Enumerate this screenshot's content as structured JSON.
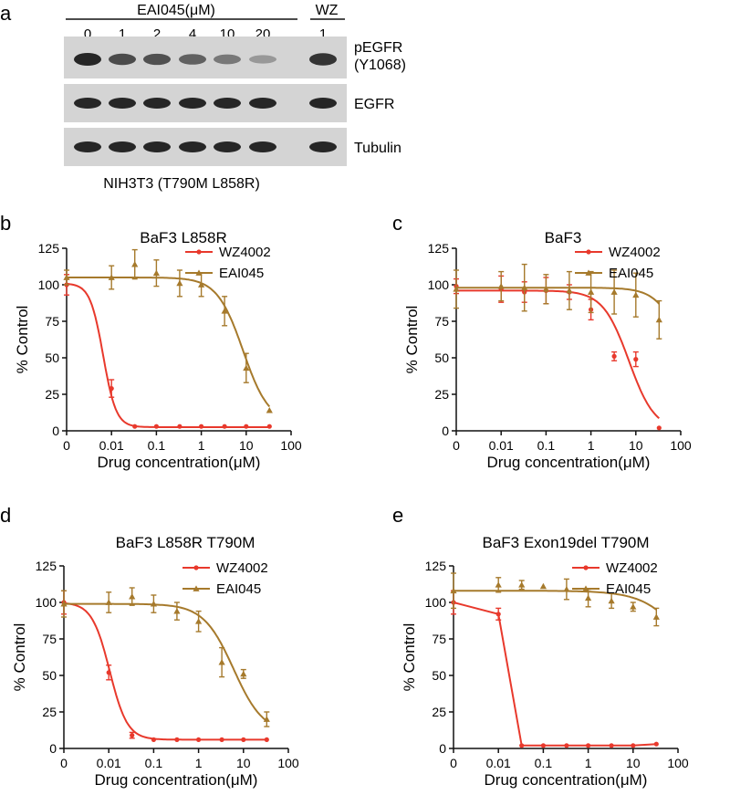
{
  "colors": {
    "wz4002": "#e8392c",
    "eai045": "#a67a2c",
    "axis": "#111111",
    "blot_bg": "#d4d4d4",
    "band": "#262626"
  },
  "blot": {
    "panel_label": "a",
    "eai_header": "EAI045(μM)",
    "wz_header": "WZ",
    "lanes": [
      "0",
      "1",
      "2",
      "4",
      "10",
      "20",
      "1"
    ],
    "rows": [
      {
        "label": "pEGFR",
        "label2": "(Y1068)",
        "intensity": [
          1.0,
          0.75,
          0.72,
          0.6,
          0.45,
          0.22,
          0.9
        ]
      },
      {
        "label": "EGFR",
        "label2": "",
        "intensity": [
          1,
          1,
          1,
          1,
          1,
          1,
          1
        ]
      },
      {
        "label": "Tubulin",
        "label2": "",
        "intensity": [
          1,
          1,
          1,
          1,
          1,
          1,
          1
        ]
      }
    ],
    "caption": "NIH3T3 (T790M L858R)"
  },
  "chart_data": [
    {
      "panel": "b",
      "type": "line",
      "title": "BaF3 L858R",
      "xlabel": "Drug concentration(μM)",
      "ylabel": "% Control",
      "xscale": "log",
      "x_ticks": [
        "0",
        "0.01",
        "0.1",
        "1",
        "10",
        "100"
      ],
      "y_ticks": [
        0,
        25,
        50,
        75,
        100,
        125
      ],
      "ylim": [
        0,
        125
      ],
      "legend": "top-right",
      "series": [
        {
          "name": "WZ4002",
          "marker": "circle",
          "fit": "curve",
          "points": [
            [
              0.001,
              100,
              7
            ],
            [
              0.01,
              29,
              6
            ],
            [
              0.033,
              3,
              1
            ],
            [
              0.1,
              3,
              1
            ],
            [
              0.33,
              3,
              1
            ],
            [
              1,
              3,
              1
            ],
            [
              3.3,
              3,
              1
            ],
            [
              10,
              3,
              1
            ],
            [
              33,
              3,
              1
            ]
          ],
          "curve": {
            "top": 101,
            "bottom": 2.5,
            "ic50": 0.0065,
            "hill": 3
          }
        },
        {
          "name": "EAI045",
          "marker": "triangle",
          "fit": "curve",
          "points": [
            [
              0.001,
              105,
              5
            ],
            [
              0.01,
              105,
              8
            ],
            [
              0.033,
              114,
              10
            ],
            [
              0.1,
              108,
              9
            ],
            [
              0.33,
              101,
              9
            ],
            [
              1,
              100,
              8
            ],
            [
              3.3,
              82,
              10
            ],
            [
              10,
              43,
              10
            ],
            [
              33,
              14,
              1
            ]
          ],
          "curve": {
            "top": 105,
            "bottom": 5,
            "ic50": 8.5,
            "hill": 1.5
          }
        }
      ]
    },
    {
      "panel": "c",
      "type": "line",
      "title": "BaF3",
      "xlabel": "Drug concentration(μM)",
      "ylabel": "% Control",
      "xscale": "log",
      "x_ticks": [
        "0",
        "0.01",
        "0.1",
        "1",
        "10",
        "100"
      ],
      "y_ticks": [
        0,
        25,
        50,
        75,
        100,
        125
      ],
      "ylim": [
        0,
        125
      ],
      "legend": "top-right",
      "series": [
        {
          "name": "WZ4002",
          "marker": "circle",
          "fit": "curve",
          "points": [
            [
              0.001,
              99,
              5
            ],
            [
              0.01,
              97,
              9
            ],
            [
              0.033,
              95,
              7
            ],
            [
              0.1,
              96,
              9
            ],
            [
              0.33,
              95,
              5
            ],
            [
              1,
              83,
              7
            ],
            [
              3.3,
              51,
              3
            ],
            [
              10,
              49,
              5
            ],
            [
              33,
              2,
              1
            ]
          ],
          "curve": {
            "top": 96,
            "bottom": 0,
            "ic50": 7,
            "hill": 1.5
          }
        },
        {
          "name": "EAI045",
          "marker": "triangle",
          "fit": "curve",
          "points": [
            [
              0.001,
              97,
              13
            ],
            [
              0.01,
              99,
              10
            ],
            [
              0.033,
              98,
              16
            ],
            [
              0.1,
              97,
              10
            ],
            [
              0.33,
              96,
              13
            ],
            [
              1,
              95,
              14
            ],
            [
              3.3,
              95,
              15
            ],
            [
              10,
              93,
              15
            ],
            [
              33,
              76,
              13
            ]
          ],
          "curve": {
            "top": 98,
            "bottom": 0,
            "ic50": 130,
            "hill": 1.5
          }
        }
      ]
    },
    {
      "panel": "d",
      "type": "line",
      "title": "BaF3 L858R T790M",
      "xlabel": "Drug concentration(μM)",
      "ylabel": "% Control",
      "xscale": "log",
      "x_ticks": [
        "0",
        "0.01",
        "0.1",
        "1",
        "10",
        "100"
      ],
      "y_ticks": [
        0,
        25,
        50,
        75,
        100,
        125
      ],
      "ylim": [
        0,
        125
      ],
      "legend": "top-right",
      "series": [
        {
          "name": "WZ4002",
          "marker": "circle",
          "fit": "curve",
          "points": [
            [
              0.001,
              100,
              8
            ],
            [
              0.01,
              52,
              5
            ],
            [
              0.033,
              9,
              2
            ],
            [
              0.1,
              6,
              1
            ],
            [
              0.33,
              6,
              1
            ],
            [
              1,
              6,
              1
            ],
            [
              3.3,
              6,
              1
            ],
            [
              10,
              6,
              1
            ],
            [
              33,
              6,
              1
            ]
          ],
          "curve": {
            "top": 100,
            "bottom": 6,
            "ic50": 0.0105,
            "hill": 2.2
          }
        },
        {
          "name": "EAI045",
          "marker": "triangle",
          "fit": "curve",
          "points": [
            [
              0.001,
              99,
              9
            ],
            [
              0.01,
              100,
              7
            ],
            [
              0.033,
              104,
              6
            ],
            [
              0.1,
              99,
              6
            ],
            [
              0.33,
              94,
              6
            ],
            [
              1,
              87,
              7
            ],
            [
              3.3,
              59,
              10
            ],
            [
              10,
              51,
              3
            ],
            [
              33,
              20,
              5
            ]
          ],
          "curve": {
            "top": 99,
            "bottom": 10,
            "ic50": 6,
            "hill": 1.3
          }
        }
      ]
    },
    {
      "panel": "e",
      "type": "line",
      "title": "BaF3 Exon19del T790M",
      "xlabel": "Drug concentration(μM)",
      "ylabel": "% Control",
      "xscale": "log",
      "x_ticks": [
        "0",
        "0.01",
        "0.1",
        "1",
        "10",
        "100"
      ],
      "y_ticks": [
        0,
        25,
        50,
        75,
        100,
        125
      ],
      "ylim": [
        0,
        125
      ],
      "legend": "top-right",
      "series": [
        {
          "name": "WZ4002",
          "marker": "circle",
          "fit": "segments",
          "points": [
            [
              0.001,
              100,
              8
            ],
            [
              0.01,
              92,
              4
            ],
            [
              0.033,
              2,
              1
            ],
            [
              0.1,
              2,
              1
            ],
            [
              0.33,
              2,
              1
            ],
            [
              1,
              2,
              1
            ],
            [
              3.3,
              2,
              1
            ],
            [
              10,
              2,
              1
            ],
            [
              33,
              3,
              1
            ]
          ]
        },
        {
          "name": "EAI045",
          "marker": "triangle",
          "fit": "curve",
          "points": [
            [
              0.001,
              108,
              12
            ],
            [
              0.01,
              112,
              5
            ],
            [
              0.033,
              112,
              3
            ],
            [
              0.1,
              111,
              1
            ],
            [
              0.33,
              109,
              7
            ],
            [
              1,
              103,
              6
            ],
            [
              3.3,
              101,
              5
            ],
            [
              10,
              97,
              3
            ],
            [
              33,
              90,
              6
            ]
          ],
          "curve": {
            "top": 108,
            "bottom": 0,
            "ic50": 300,
            "hill": 0.9
          }
        }
      ]
    }
  ]
}
